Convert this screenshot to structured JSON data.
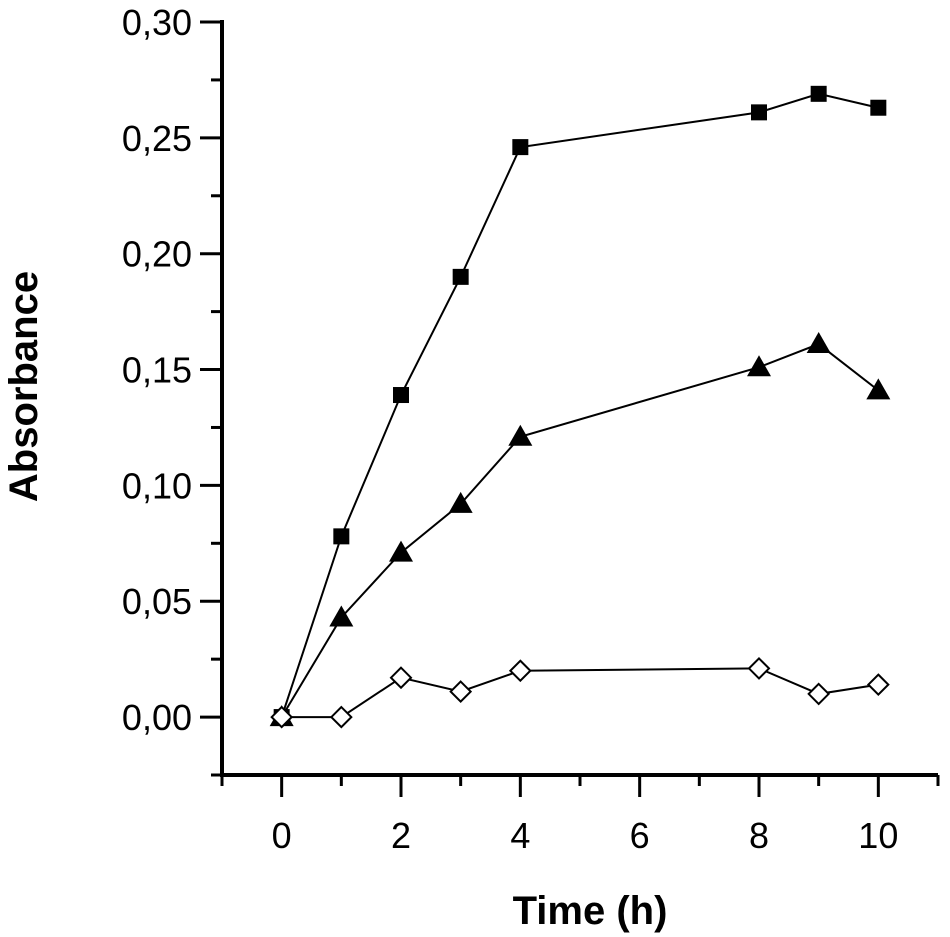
{
  "chart_data": {
    "type": "scatter",
    "xlabel": "Time (h)",
    "ylabel": "Absorbance",
    "xlim": [
      -1,
      11
    ],
    "ylim": [
      -0.025,
      0.3
    ],
    "x_ticks": [
      0,
      2,
      4,
      6,
      8,
      10
    ],
    "x_tick_labels": [
      "0",
      "2",
      "4",
      "6",
      "8",
      "10"
    ],
    "y_ticks": [
      0.0,
      0.05,
      0.1,
      0.15,
      0.2,
      0.25,
      0.3
    ],
    "y_tick_labels": [
      "0,00",
      "0,05",
      "0,10",
      "0,15",
      "0,20",
      "0,25",
      "0,30"
    ],
    "grid": false,
    "series": [
      {
        "marker": "filled-square",
        "color": "#000000",
        "x": [
          0,
          1,
          2,
          3,
          4,
          8,
          9,
          10
        ],
        "y": [
          0.0,
          0.078,
          0.139,
          0.19,
          0.246,
          0.261,
          0.269,
          0.263
        ]
      },
      {
        "marker": "filled-triangle",
        "color": "#000000",
        "x": [
          0,
          1,
          2,
          3,
          4,
          8,
          9,
          10
        ],
        "y": [
          0.0,
          0.043,
          0.071,
          0.092,
          0.121,
          0.151,
          0.161,
          0.141
        ]
      },
      {
        "marker": "open-diamond",
        "color": "#000000",
        "x": [
          0,
          1,
          2,
          3,
          4,
          8,
          9,
          10
        ],
        "y": [
          0.0,
          0.0,
          0.017,
          0.011,
          0.02,
          0.021,
          0.01,
          0.014
        ]
      }
    ]
  }
}
